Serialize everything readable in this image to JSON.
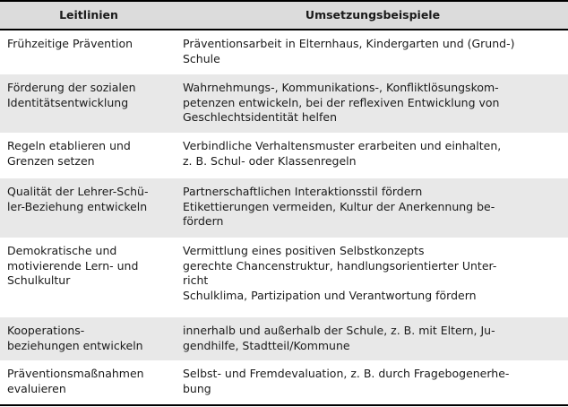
{
  "headers": [
    "Leitlinien",
    "Umsetzungsbeispiele"
  ],
  "rows": [
    {
      "leitlinie": "Frühzeitige Prävention",
      "beispiele": "Präventionsarbeit in Elternhaus, Kindergarten und (Grund-)\nSchule"
    },
    {
      "leitlinie": "Förderung der sozialen\nIdentitätsentwicklung",
      "beispiele": "Wahrnehmungs-, Kommunikations-, Konfliktlösungskom-\npetenzen entwickeln, bei der reflexiven Entwicklung von\nGeschlechtsidentität helfen"
    },
    {
      "leitlinie": "Regeln etablieren und\nGrenzen setzen",
      "beispiele": "Verbindliche Verhaltensmuster erarbeiten und einhalten,\nz. B. Schul- oder Klassenregeln"
    },
    {
      "leitlinie": "Qualität der Lehrer-Schü-\nler-Beziehung entwickeln",
      "beispiele": "Partnerschaftlichen Interaktionsstil fördern\nEtikettierungen vermeiden, Kultur der Anerkennung be-\nfördern"
    },
    {
      "leitlinie": "Demokratische und\nmotivierende Lern- und\nSchulkultur",
      "beispiele": "Vermittlung eines positiven Selbstkonzepts\ngerechte Chancenstruktur, handlungsorientierter Unter-\nricht\nSchulklima, Partizipation und Verantwortung fördern"
    },
    {
      "leitlinie": "Kooperations-\nbeziehungen entwickeln",
      "beispiele": "innerhalb und außerhalb der Schule, z. B. mit Eltern, Ju-\ngendhilfe, Stadtteil/Kommune"
    },
    {
      "leitlinie": "Präventionsmaßnahmen\nevaluieren",
      "beispiele": "Selbst- und Fremdevaluation, z. B. durch Fragebogenerhe-\nbung"
    }
  ]
}
